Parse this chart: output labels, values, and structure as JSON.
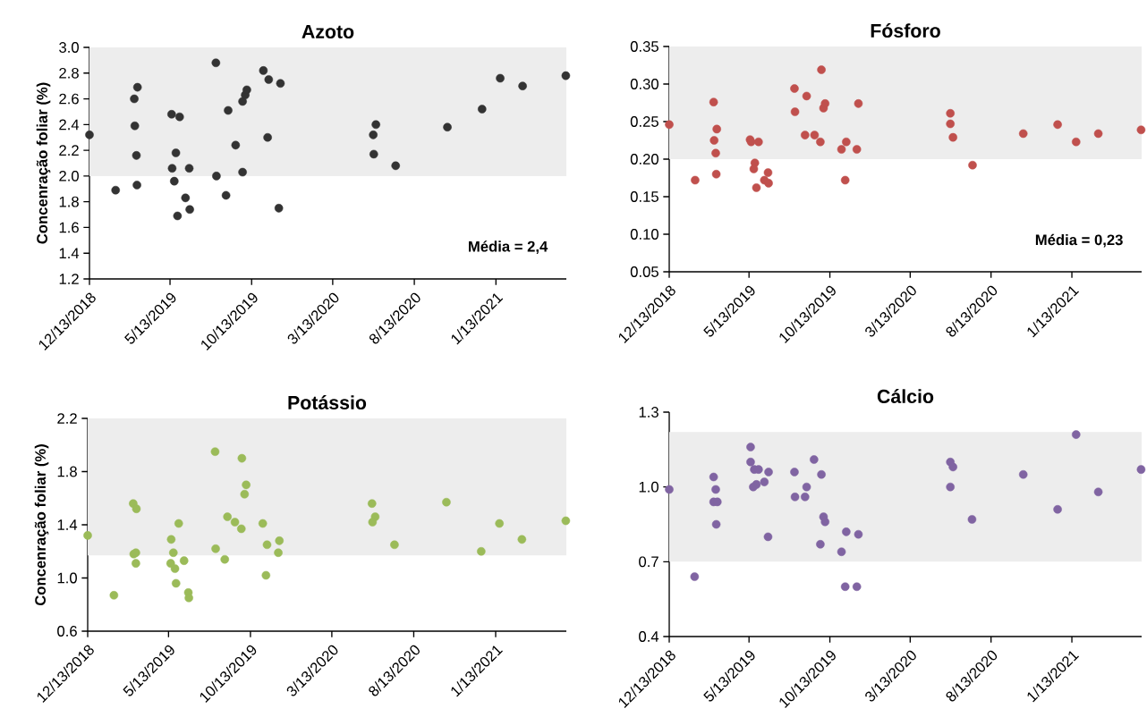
{
  "chart_data": [
    {
      "type": "scatter",
      "title": "Azoto",
      "ylabel": "Concenração foliar (%)",
      "color": "#333333",
      "marker": "circle",
      "x": [
        "2018-12-13",
        "2019-01-31",
        "2019-03-07",
        "2019-03-13",
        "2019-03-08",
        "2019-03-11",
        "2019-03-12",
        "2019-05-16",
        "2019-05-31",
        "2019-05-24",
        "2019-05-17",
        "2019-05-21",
        "2019-05-27",
        "2019-06-11",
        "2019-06-18",
        "2019-06-19",
        "2019-08-07",
        "2019-08-08",
        "2019-08-30",
        "2019-08-26",
        "2019-09-13",
        "2019-09-26",
        "2019-10-01",
        "2019-10-04",
        "2019-09-26",
        "2019-11-04",
        "2019-11-14",
        "2019-12-06",
        "2019-11-12",
        "2019-12-03",
        "2020-05-28",
        "2020-06-02",
        "2020-05-29",
        "2020-07-09",
        "2020-10-14",
        "2020-12-18",
        "2021-01-21",
        "2021-03-04",
        "2021-05-24"
      ],
      "values": [
        2.32,
        1.89,
        2.6,
        2.69,
        2.39,
        2.16,
        1.93,
        2.48,
        2.46,
        2.18,
        2.06,
        1.96,
        1.69,
        1.83,
        2.06,
        1.74,
        2.88,
        2.0,
        2.51,
        1.85,
        2.24,
        2.58,
        2.63,
        2.67,
        2.03,
        2.82,
        2.75,
        2.72,
        2.3,
        1.75,
        2.32,
        2.4,
        2.17,
        2.08,
        2.38,
        2.52,
        2.76,
        2.7,
        2.78
      ],
      "xlim": [
        "2018-12-13",
        "2021-05-25"
      ],
      "xticks": [
        {
          "value": "2018-12-13",
          "label": "12/13/2018"
        },
        {
          "value": "2019-05-13",
          "label": "5/13/2019"
        },
        {
          "value": "2019-10-13",
          "label": "10/13/2019"
        },
        {
          "value": "2020-03-13",
          "label": "3/13/2020"
        },
        {
          "value": "2020-08-13",
          "label": "8/13/2020"
        },
        {
          "value": "2021-01-13",
          "label": "1/13/2021"
        }
      ],
      "ylim": [
        1.2,
        3.0
      ],
      "yticks": [
        1.2,
        1.4,
        1.6,
        1.8,
        {
          "value": 2.0,
          "label": "2.0"
        },
        2.2,
        2.4,
        2.6,
        2.8,
        {
          "value": 3.0,
          "label": "3.0"
        }
      ],
      "bands": [
        {
          "axis": "y",
          "from": 2.0,
          "to": 3.0,
          "color": "#ededed"
        }
      ],
      "annotations": [
        "Média = 2,4"
      ]
    },
    {
      "type": "scatter",
      "title": "Fósforo",
      "color": "#c0504d",
      "marker": "circle",
      "x": [
        "2018-12-13",
        "2019-01-31",
        "2019-03-07",
        "2019-03-13",
        "2019-03-08",
        "2019-03-11",
        "2019-03-12",
        "2019-05-15",
        "2019-05-17",
        "2019-05-31",
        "2019-05-24",
        "2019-05-22",
        "2019-05-27",
        "2019-06-11",
        "2019-06-18",
        "2019-06-19",
        "2019-08-07",
        "2019-08-08",
        "2019-08-30",
        "2019-08-27",
        "2019-09-14",
        "2019-09-25",
        "2019-09-27",
        "2019-10-01",
        "2019-10-04",
        "2019-11-04",
        "2019-11-13",
        "2019-11-11",
        "2019-12-06",
        "2019-12-03",
        "2020-05-28",
        "2020-05-28",
        "2020-06-02",
        "2020-07-09",
        "2020-10-13",
        "2020-12-17",
        "2021-01-21",
        "2021-03-04",
        "2021-05-24"
      ],
      "values": [
        0.246,
        0.172,
        0.276,
        0.24,
        0.225,
        0.208,
        0.18,
        0.226,
        0.223,
        0.223,
        0.195,
        0.187,
        0.162,
        0.172,
        0.182,
        0.168,
        0.294,
        0.263,
        0.284,
        0.232,
        0.232,
        0.223,
        0.319,
        0.268,
        0.274,
        0.213,
        0.223,
        0.172,
        0.274,
        0.213,
        0.261,
        0.247,
        0.229,
        0.192,
        0.234,
        0.246,
        0.223,
        0.234,
        0.239
      ],
      "xlim": [
        "2018-12-13",
        "2021-05-25"
      ],
      "xticks": [
        {
          "value": "2018-12-13",
          "label": "12/13/2018"
        },
        {
          "value": "2019-05-13",
          "label": "5/13/2019"
        },
        {
          "value": "2019-10-13",
          "label": "10/13/2019"
        },
        {
          "value": "2020-03-13",
          "label": "3/13/2020"
        },
        {
          "value": "2020-08-13",
          "label": "8/13/2020"
        },
        {
          "value": "2021-01-13",
          "label": "1/13/2021"
        }
      ],
      "ylim": [
        0.05,
        0.35
      ],
      "yticks": [
        {
          "value": 0.05,
          "label": "0.05"
        },
        {
          "value": 0.1,
          "label": "0.10"
        },
        0.15,
        {
          "value": 0.2,
          "label": "0.20"
        },
        0.25,
        {
          "value": 0.3,
          "label": "0.30"
        },
        0.35
      ],
      "bands": [
        {
          "axis": "y",
          "from": 0.2,
          "to": 0.35,
          "color": "#ededed"
        }
      ],
      "annotations": [
        "Média = 0,23"
      ]
    },
    {
      "type": "scatter",
      "title": "Potássio",
      "ylabel": "Concenração foliar (%)",
      "color": "#9bbb59",
      "marker": "circle",
      "x": [
        "2018-12-13",
        "2019-01-31",
        "2019-03-08",
        "2019-03-14",
        "2019-03-09",
        "2019-03-13",
        "2019-03-13",
        "2019-05-18",
        "2019-05-22",
        "2019-06-01",
        "2019-05-17",
        "2019-05-25",
        "2019-05-27",
        "2019-06-11",
        "2019-06-19",
        "2019-06-20",
        "2019-08-08",
        "2019-08-09",
        "2019-08-26",
        "2019-08-31",
        "2019-09-14",
        "2019-09-26",
        "2019-09-27",
        "2019-10-05",
        "2019-10-02",
        "2019-11-05",
        "2019-11-13",
        "2019-11-11",
        "2019-12-06",
        "2019-12-04",
        "2020-05-27",
        "2020-06-02",
        "2020-05-28",
        "2020-07-08",
        "2020-10-13",
        "2020-12-17",
        "2021-01-20",
        "2021-03-03",
        "2021-05-24"
      ],
      "values": [
        1.32,
        0.87,
        1.56,
        1.52,
        1.18,
        1.19,
        1.11,
        1.29,
        1.19,
        1.41,
        1.11,
        1.07,
        0.96,
        1.13,
        0.89,
        0.85,
        1.95,
        1.22,
        1.14,
        1.46,
        1.42,
        1.37,
        1.9,
        1.7,
        1.63,
        1.41,
        1.25,
        1.02,
        1.28,
        1.19,
        1.56,
        1.46,
        1.42,
        1.25,
        1.57,
        1.2,
        1.41,
        1.29,
        1.43
      ],
      "xlim": [
        "2018-12-13",
        "2021-05-25"
      ],
      "xticks": [
        {
          "value": "2018-12-13",
          "label": "12/13/2018"
        },
        {
          "value": "2019-05-13",
          "label": "5/13/2019"
        },
        {
          "value": "2019-10-13",
          "label": "10/13/2019"
        },
        {
          "value": "2020-03-13",
          "label": "3/13/2020"
        },
        {
          "value": "2020-08-13",
          "label": "8/13/2020"
        },
        {
          "value": "2021-01-13",
          "label": "1/13/2021"
        }
      ],
      "ylim": [
        0.6,
        2.2
      ],
      "yticks": [
        0.6,
        {
          "value": 1.0,
          "label": "1.0"
        },
        1.4,
        1.8,
        2.2
      ],
      "bands": [
        {
          "axis": "y",
          "from": 1.17,
          "to": 2.2,
          "color": "#ededed"
        }
      ]
    },
    {
      "type": "scatter",
      "title": "Cálcio",
      "color": "#8064a2",
      "marker": "circle",
      "x": [
        "2018-12-13",
        "2019-01-30",
        "2019-03-07",
        "2019-03-11",
        "2019-03-07",
        "2019-03-14",
        "2019-03-12",
        "2019-05-16",
        "2019-05-16",
        "2019-05-23",
        "2019-05-31",
        "2019-06-19",
        "2019-05-27",
        "2019-05-21",
        "2019-06-11",
        "2019-06-18",
        "2019-08-07",
        "2019-08-08",
        "2019-08-27",
        "2019-08-30",
        "2019-09-13",
        "2019-09-27",
        "2019-10-01",
        "2019-10-04",
        "2019-09-25",
        "2019-11-04",
        "2019-11-13",
        "2019-12-06",
        "2019-11-11",
        "2019-12-03",
        "2020-05-28",
        "2020-06-02",
        "2020-05-28",
        "2020-07-08",
        "2020-10-13",
        "2020-12-17",
        "2021-01-21",
        "2021-03-04",
        "2021-05-24"
      ],
      "values": [
        0.99,
        0.64,
        1.04,
        0.99,
        0.94,
        0.94,
        0.85,
        1.16,
        1.1,
        1.07,
        1.07,
        1.06,
        1.01,
        1.0,
        1.02,
        0.8,
        1.06,
        0.96,
        0.96,
        1.0,
        1.11,
        1.05,
        0.88,
        0.86,
        0.77,
        0.74,
        0.82,
        0.81,
        0.6,
        0.6,
        1.1,
        1.08,
        1.0,
        0.87,
        1.05,
        0.91,
        1.21,
        0.98,
        1.07
      ],
      "xlim": [
        "2018-12-13",
        "2021-05-25"
      ],
      "xticks": [
        {
          "value": "2018-12-13",
          "label": "12/13/2018"
        },
        {
          "value": "2019-05-13",
          "label": "5/13/2019"
        },
        {
          "value": "2019-10-13",
          "label": "10/13/2019"
        },
        {
          "value": "2020-03-13",
          "label": "3/13/2020"
        },
        {
          "value": "2020-08-13",
          "label": "8/13/2020"
        },
        {
          "value": "2021-01-13",
          "label": "1/13/2021"
        }
      ],
      "ylim": [
        0.4,
        1.3
      ],
      "yticks": [
        0.4,
        0.7,
        {
          "value": 1.0,
          "label": "1.0"
        },
        1.3
      ],
      "bands": [
        {
          "axis": "y",
          "from": 0.7,
          "to": 1.22,
          "color": "#ededed"
        }
      ]
    }
  ]
}
